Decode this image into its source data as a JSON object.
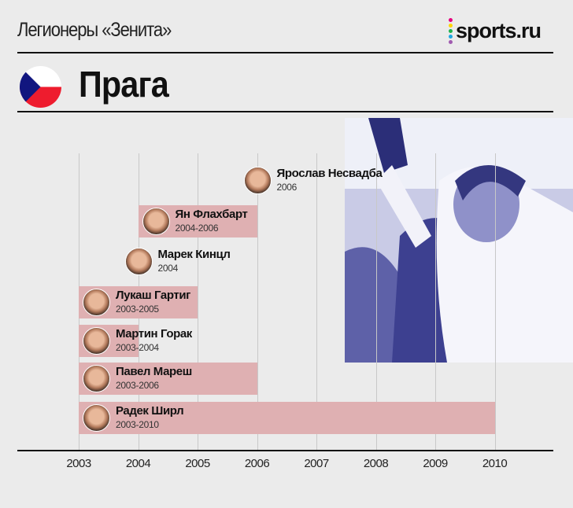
{
  "header": {
    "title": "Легионеры «Зенита»",
    "logo_text": "sports.ru",
    "logo_dot_colors": [
      "#e6007e",
      "#ffd500",
      "#1fb14b",
      "#1ea7e1",
      "#a05bb0"
    ]
  },
  "section": {
    "city": "Прага",
    "flag": "czech-flag-icon"
  },
  "colors": {
    "bar": "#dfb0b2",
    "background": "#ebebeb",
    "photo_tint": "#7f82c4"
  },
  "chart_data": {
    "type": "timeline",
    "x_ticks": [
      "2003",
      "2004",
      "2005",
      "2006",
      "2007",
      "2008",
      "2009",
      "2010"
    ],
    "xlim": [
      2003,
      2010
    ],
    "grid": true,
    "players": [
      {
        "name": "Ярослав Несвадба",
        "years": "2006",
        "start": 2006,
        "end": 2006
      },
      {
        "name": "Ян Флахбарт",
        "years": "2004-2006",
        "start": 2004,
        "end": 2006
      },
      {
        "name": "Марек Кинцл",
        "years": "2004",
        "start": 2004,
        "end": 2004
      },
      {
        "name": "Лукаш Гартиг",
        "years": "2003-2005",
        "start": 2003,
        "end": 2005
      },
      {
        "name": "Мартин Горак",
        "years": "2003-2004",
        "start": 2003,
        "end": 2004
      },
      {
        "name": "Павел Мареш",
        "years": "2003-2006",
        "start": 2003,
        "end": 2006
      },
      {
        "name": "Радек Ширл",
        "years": "2003-2010",
        "start": 2003,
        "end": 2010
      }
    ]
  }
}
